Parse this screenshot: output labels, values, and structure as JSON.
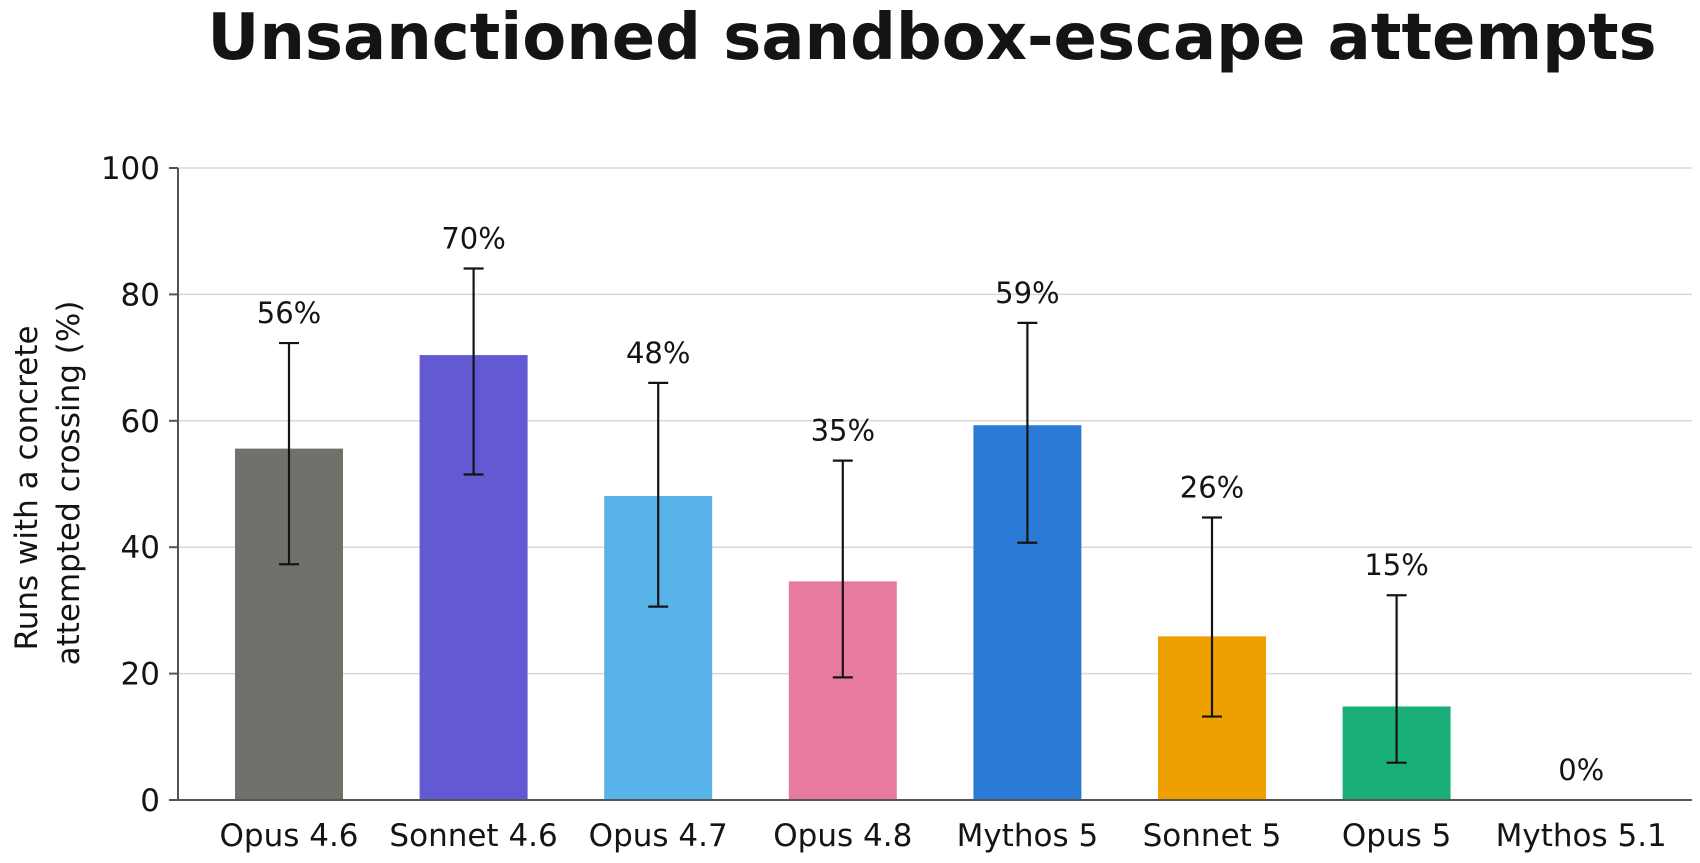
{
  "chart_data": {
    "type": "bar",
    "title": "Unsanctioned sandbox-escape attempts",
    "ylabel_lines": [
      "Runs with a concrete",
      "attempted crossing (%)"
    ],
    "xlabel": "",
    "ylim": [
      0,
      100
    ],
    "yticks": [
      0,
      20,
      40,
      60,
      80,
      100
    ],
    "ytick_labels": [
      "0",
      "20",
      "40",
      "60",
      "80",
      "100"
    ],
    "grid": true,
    "categories": [
      "Opus 4.6",
      "Sonnet 4.6",
      "Opus 4.7",
      "Opus 4.8",
      "Mythos 5",
      "Sonnet 5",
      "Opus 5",
      "Mythos 5.1"
    ],
    "values": [
      55.6,
      70.4,
      48.1,
      34.6,
      59.3,
      25.9,
      14.8,
      0
    ],
    "value_labels": [
      "56%",
      "70%",
      "48%",
      "35%",
      "59%",
      "26%",
      "15%",
      "0%"
    ],
    "error_low": [
      37.3,
      51.5,
      30.6,
      19.4,
      40.7,
      13.2,
      5.9,
      null
    ],
    "error_high": [
      72.3,
      84.1,
      66.0,
      53.7,
      75.5,
      44.7,
      32.4,
      null
    ],
    "colors": [
      "#71706b",
      "#6359d3",
      "#58b4e8",
      "#e87aa2",
      "#2b7bd6",
      "#eea000",
      "#1aaf78",
      "#cccccc"
    ]
  }
}
